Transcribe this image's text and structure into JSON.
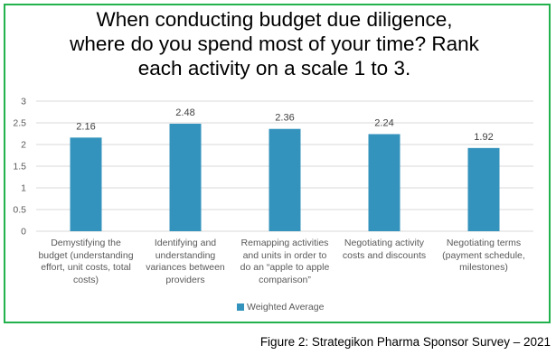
{
  "chart_data": {
    "type": "bar",
    "title": "When conducting budget due diligence, where do you spend most of your time? Rank each activity on a scale 1 to 3.",
    "title_lines": [
      "When conducting budget due diligence,",
      "where do you spend most of your time? Rank",
      "each activity on a scale 1 to 3."
    ],
    "categories": [
      "Demystifying the budget (understanding effort, unit costs, total costs)",
      "Identifying and understanding variances between providers",
      "Remapping activities and units in order to do an “apple to apple comparison”",
      "Negotiating activity costs and discounts",
      "Negotiating terms (payment schedule, milestones)"
    ],
    "category_lines": [
      [
        "Demystifying the",
        "budget (understanding",
        "effort, unit costs, total",
        "costs)"
      ],
      [
        "Identifying and",
        "understanding",
        "variances between",
        "providers"
      ],
      [
        "Remapping activities",
        "and units in order to",
        "do an “apple to apple",
        "comparison”"
      ],
      [
        "Negotiating activity",
        "costs and discounts"
      ],
      [
        "Negotiating terms",
        "(payment schedule,",
        "milestones)"
      ]
    ],
    "series": [
      {
        "name": "Weighted Average",
        "values": [
          2.16,
          2.48,
          2.36,
          2.24,
          1.92
        ],
        "color": "#3493bd"
      }
    ],
    "data_labels": [
      "2.16",
      "2.48",
      "2.36",
      "2.24",
      "1.92"
    ],
    "yticks": [
      "0",
      "0.5",
      "1",
      "1.5",
      "2",
      "2.5",
      "3"
    ],
    "ylim": [
      0,
      3
    ],
    "xlabel": "",
    "ylabel": "",
    "grid": true,
    "legend_position": "bottom"
  },
  "legend": {
    "label": "Weighted Average",
    "color": "#3493bd"
  },
  "caption": "Figure 2: Strategikon Pharma Sponsor Survey – 2021",
  "colors": {
    "border": "#22b14c",
    "bar": "#3493bd",
    "grid": "#d9d9d9"
  }
}
